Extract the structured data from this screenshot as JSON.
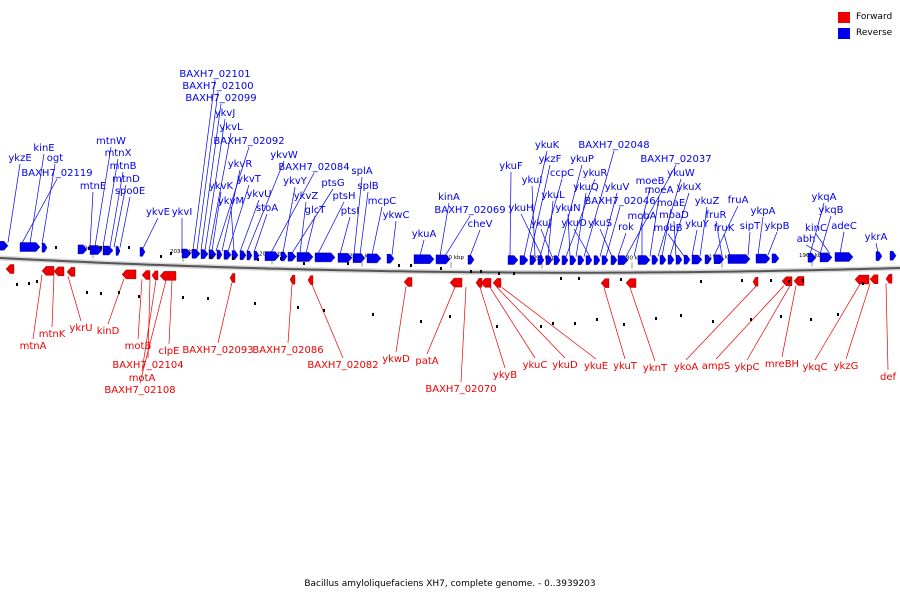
{
  "legend": {
    "forward_label": "Forward",
    "reverse_label": "Reverse",
    "forward_color": "#ee0000",
    "reverse_color": "#0000ee"
  },
  "caption": "Bacillus amyloliquefaciens XH7, complete genome. - 0..3939203",
  "ticks": [
    "2040 kbp",
    "2030 kbp",
    "2020 kbp",
    "2010 kbp",
    "2000 kbp",
    "1990 kbp",
    "1980 kbp",
    "1970 kbp",
    "1960 kbp"
  ],
  "reverse_labels": [
    "ykzE",
    "kinE",
    "ogt",
    "BAXH7_02119",
    "mtnW",
    "mtnX",
    "mtnB",
    "mtnD",
    "mtnE",
    "spo0E",
    "ykvE",
    "ykvI",
    "BAXH7_02101",
    "BAXH7_02100",
    "BAXH7_02099",
    "ykvJ",
    "ykvL",
    "BAXH7_02092",
    "ykvR",
    "ykvK",
    "ykvT",
    "ykvM",
    "ykvU",
    "ykvW",
    "stoA",
    "BAXH7_02084",
    "ykvY",
    "ptsG",
    "ykvZ",
    "glcT",
    "ptsH",
    "ptsI",
    "splA",
    "splB",
    "mcpC",
    "ykwC",
    "ykuA",
    "kinA",
    "BAXH7_02069",
    "cheV",
    "ykuF",
    "ykuK",
    "ykzF",
    "ykuI",
    "ccpC",
    "ykuH",
    "ykuL",
    "ykuJ",
    "ykuP",
    "ykuR",
    "ykuN",
    "ykuQ",
    "BAXH7_02048",
    "ykuO",
    "ykuV",
    "BAXH7_02046",
    "ykuS",
    "rok",
    "BAXH7_02037",
    "moeB",
    "mobA",
    "moeA",
    "ykuW",
    "moaE",
    "ykuX",
    "moaD",
    "mobB",
    "ykuY",
    "ykuZ",
    "fruA",
    "fruR",
    "fruK",
    "sipT",
    "ykpA",
    "ykpB",
    "ykqA",
    "ykqB",
    "kinC",
    "abh",
    "adeC",
    "ykrA"
  ],
  "forward_labels": [
    "mtnA",
    "mtnK",
    "ykrU",
    "kinD",
    "motB",
    "BAXH7_02104",
    "motA",
    "BAXH7_02108",
    "clpE",
    "BAXH7_02093",
    "BAXH7_02086",
    "BAXH7_02082",
    "ykwD",
    "patA",
    "BAXH7_02070",
    "ykyB",
    "ykuC",
    "ykuD",
    "ykuE",
    "ykuT",
    "yknT",
    "ykoA",
    "ampS",
    "ykpC",
    "mreBH",
    "ykqC",
    "ykzG",
    "def"
  ]
}
